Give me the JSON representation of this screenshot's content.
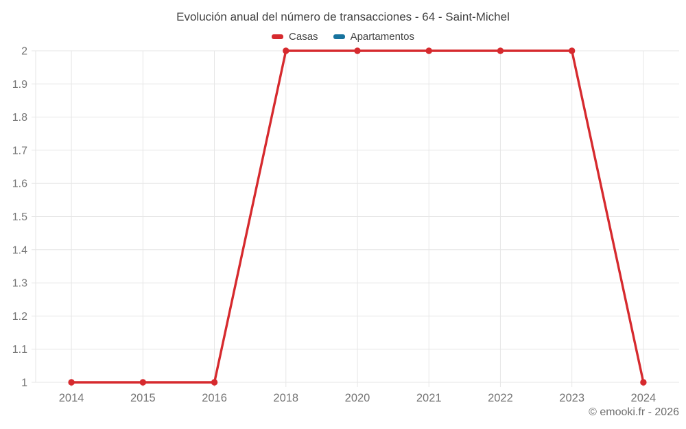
{
  "title": "Evolución anual del número de transacciones - 64 - Saint-Michel",
  "legend": {
    "items": [
      {
        "label": "Casas",
        "color": "#d62a2e"
      },
      {
        "label": "Apartamentos",
        "color": "#17739e"
      }
    ]
  },
  "footer": "© emooki.fr - 2026",
  "colors": {
    "background": "#ffffff",
    "grid": "#e6e6e6",
    "axis_text": "#757575",
    "title_text": "#424242",
    "footer_text": "#6d6d6d"
  },
  "chart_data": {
    "type": "line",
    "title": "Evolución anual del número de transacciones - 64 - Saint-Michel",
    "categories": [
      "2014",
      "2015",
      "2016",
      "2018",
      "2020",
      "2021",
      "2022",
      "2023",
      "2024"
    ],
    "series": [
      {
        "name": "Casas",
        "color": "#d62a2e",
        "values": [
          1,
          1,
          1,
          2,
          2,
          2,
          2,
          2,
          1
        ]
      },
      {
        "name": "Apartamentos",
        "color": "#17739e",
        "values": []
      }
    ],
    "xlabel": "",
    "ylabel": "",
    "ylim": [
      1,
      2
    ],
    "yticks": [
      1,
      1.1,
      1.2,
      1.3,
      1.4,
      1.5,
      1.6,
      1.7,
      1.8,
      1.9,
      2
    ],
    "grid": true,
    "legend_position": "top"
  }
}
